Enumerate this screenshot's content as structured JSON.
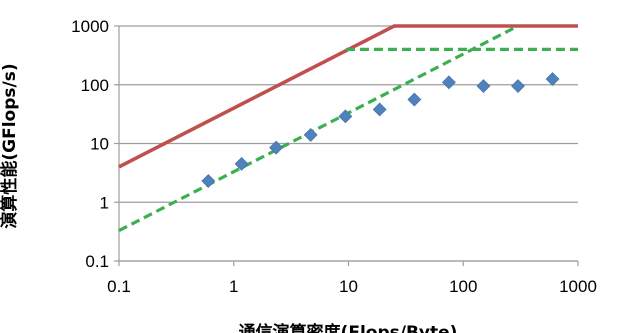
{
  "chart_data": {
    "type": "scatter",
    "title": "",
    "xlabel": "通信演算密度(Flops/Byte)",
    "ylabel": "演算性能(GFlops/s)",
    "x_scale": "log",
    "y_scale": "log",
    "xlim": [
      0.1,
      1000
    ],
    "ylim": [
      0.1,
      1000
    ],
    "x_ticks": [
      0.1,
      1,
      10,
      100,
      1000
    ],
    "x_tick_labels": [
      "0.1",
      "1",
      "10",
      "100",
      "1000"
    ],
    "y_ticks": [
      0.1,
      1,
      10,
      100,
      1000
    ],
    "y_tick_labels": [
      "0.1",
      "1",
      "10",
      "100",
      "1000"
    ],
    "grid": "horizontal",
    "legend": "none",
    "series": [
      {
        "type": "line",
        "style": "solid",
        "color": "#c0504d",
        "points": [
          [
            0.1,
            4
          ],
          [
            25,
            1000
          ],
          [
            1000,
            1000
          ]
        ]
      },
      {
        "type": "line",
        "style": "dashed",
        "color": "#3cb050",
        "points": [
          [
            9.5,
            400
          ],
          [
            1000,
            400
          ]
        ]
      },
      {
        "type": "line",
        "style": "dashed",
        "color": "#3cb050",
        "points": [
          [
            0.1,
            0.33
          ],
          [
            300,
            1000
          ]
        ]
      },
      {
        "type": "scatter",
        "marker": "diamond",
        "color": "#4f81bd",
        "x": [
          0.6,
          1.17,
          2.34,
          4.68,
          9.4,
          18.7,
          37.5,
          75,
          150,
          300,
          600
        ],
        "y": [
          2.3,
          4.5,
          8.5,
          14,
          29,
          38,
          56,
          110,
          95,
          95,
          125
        ]
      }
    ]
  }
}
